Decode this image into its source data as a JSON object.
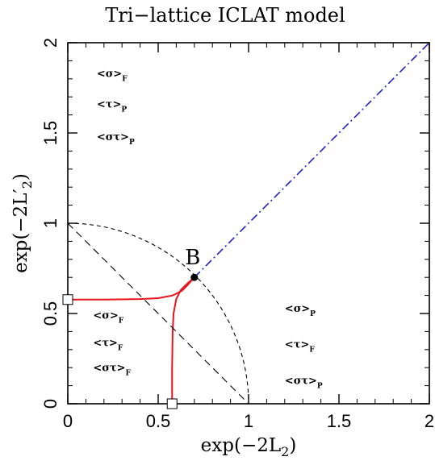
{
  "chart_data": {
    "type": "line",
    "title": "Tri−lattice ICLAT model",
    "xlabel": {
      "base": "exp(−2L",
      "sub": "2",
      "tail": ")"
    },
    "ylabel": {
      "base": "exp(−2L′",
      "sub": "2",
      "tail": ")"
    },
    "xlim": [
      0,
      2
    ],
    "ylim": [
      0,
      2
    ],
    "xticks": [
      {
        "v": 0,
        "label": "0"
      },
      {
        "v": 0.5,
        "label": "0.5"
      },
      {
        "v": 1,
        "label": "1"
      },
      {
        "v": 1.5,
        "label": "1.5"
      },
      {
        "v": 2,
        "label": "2"
      }
    ],
    "yticks": [
      {
        "v": 0,
        "label": "0"
      },
      {
        "v": 0.5,
        "label": "0.5"
      },
      {
        "v": 1,
        "label": "1"
      },
      {
        "v": 1.5,
        "label": "1.5"
      },
      {
        "v": 2,
        "label": "2"
      }
    ],
    "series": [
      {
        "style": "solid",
        "color": "#e8141e",
        "x": [
          0,
          0.2,
          0.4,
          0.5,
          0.58,
          0.63,
          0.66,
          0.7
        ],
        "y": [
          0.577,
          0.577,
          0.58,
          0.585,
          0.6,
          0.625,
          0.655,
          0.7
        ]
      },
      {
        "style": "solid",
        "color": "#e8141e",
        "x": [
          0.577,
          0.577,
          0.58,
          0.585,
          0.6,
          0.625,
          0.655,
          0.7
        ],
        "y": [
          0,
          0.2,
          0.4,
          0.5,
          0.58,
          0.63,
          0.66,
          0.7
        ]
      },
      {
        "style": "dash-dot",
        "color": "#1f22cc",
        "x": [
          0.7,
          2
        ],
        "y": [
          0.7,
          2
        ]
      },
      {
        "style": "dashed",
        "color": "#000000",
        "x": [
          0,
          1
        ],
        "y": [
          1,
          0
        ]
      },
      {
        "style": "dashed-arc",
        "color": "#000000",
        "center": [
          0,
          0
        ],
        "radius": 1,
        "from": [
          0,
          1
        ],
        "to": [
          1,
          0
        ]
      }
    ],
    "points": [
      {
        "name": "B",
        "label": "B",
        "x": 0.7,
        "y": 0.7,
        "marker": "filled-circle"
      }
    ],
    "markers": [
      {
        "x": 0,
        "y": 0.577,
        "marker": "open-square"
      },
      {
        "x": 0.577,
        "y": 0,
        "marker": "open-square"
      }
    ],
    "annotations": [
      {
        "text": "<σ>",
        "sub": "F",
        "x": 0.16,
        "y": 1.81
      },
      {
        "text": "<τ>",
        "sub": "P",
        "x": 0.16,
        "y": 1.64
      },
      {
        "text": "<στ>",
        "sub": "P",
        "x": 0.16,
        "y": 1.46
      },
      {
        "text": "<σ>",
        "sub": "F",
        "x": 0.14,
        "y": 0.47
      },
      {
        "text": "<τ>",
        "sub": "F",
        "x": 0.14,
        "y": 0.32
      },
      {
        "text": "<στ>",
        "sub": "F",
        "x": 0.14,
        "y": 0.18
      },
      {
        "text": "<σ>",
        "sub": "P",
        "x": 1.2,
        "y": 0.51
      },
      {
        "text": "<τ>",
        "sub": "F",
        "x": 1.2,
        "y": 0.31
      },
      {
        "text": "<στ>",
        "sub": "P",
        "x": 1.2,
        "y": 0.11
      }
    ]
  }
}
